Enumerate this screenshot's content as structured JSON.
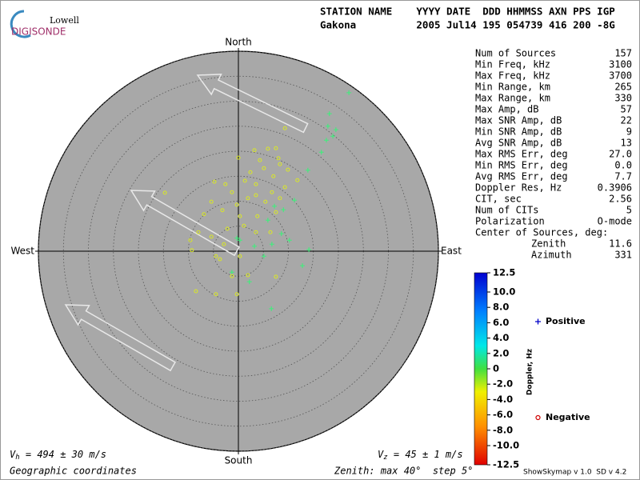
{
  "logo": {
    "top": "Lowell",
    "bottom": "DIGISONDE"
  },
  "header": {
    "line1": "STATION NAME    YYYY DATE  DDD HHMMSS AXN PPS IGP",
    "line2": "Gakona          2005 Jul14 195 054739 416 200 -8G"
  },
  "chart_data": {
    "type": "skymap",
    "directions": {
      "north": "North",
      "south": "South",
      "east": "East",
      "west": "West"
    },
    "rlim": [
      0,
      40
    ],
    "rticks": [
      5,
      10,
      15,
      20,
      25,
      30,
      35,
      40
    ],
    "series": [
      {
        "name": "Positive",
        "color": "#3cf07a",
        "legend_color": "#0000c8",
        "x": [
          22.1,
          18.2,
          19.5,
          17.6,
          13.9,
          11.2,
          9.0,
          7.2,
          14.1,
          12.8,
          6.6,
          10.2,
          8.6,
          5.1,
          3.2,
          0.3,
          -0.3,
          2.2,
          16.6,
          18.9,
          17.9,
          6.7,
          5.9,
          -1.3
        ],
        "y": [
          31.7,
          27.5,
          24.3,
          22.2,
          16.2,
          10.2,
          8.3,
          9.0,
          0.3,
          -2.9,
          -11.5,
          2.2,
          3.5,
          -1.0,
          1.0,
          2.2,
          2.6,
          -6.1,
          19.8,
          23.0,
          25.0,
          1.4,
          6.2,
          -4.2
        ]
      },
      {
        "name": "Negative",
        "color": "#d8e62a",
        "legend_color": "#d00000",
        "x": [
          -14.7,
          0,
          -8.5,
          -4.5,
          -0.3,
          -9.6,
          -9.3,
          -4.5,
          -3.7,
          -4.8,
          -2.6,
          1.3,
          3.5,
          5.1,
          7.5,
          8.0,
          5.9,
          3.2,
          9.3,
          11.8,
          9.3,
          6.7,
          3.5,
          1.9,
          -1.3,
          -5.4,
          -3.2,
          0.3,
          3.8,
          7.5,
          6.4,
          3.5,
          1.1,
          -2.2,
          -5.4,
          -2.9,
          0.3,
          7.5,
          1.9,
          -1.3,
          9.9,
          8.3,
          4.3,
          2.4,
          7.0,
          8.3,
          5.4,
          -0.3,
          -6.9,
          -8.0
        ],
        "y": [
          11.7,
          18.7,
          -8.0,
          -8.6,
          -8.6,
          2.2,
          0.2,
          -1.0,
          -1.6,
          13.9,
          13.4,
          14.1,
          13.4,
          16.6,
          20.6,
          18.6,
          20.5,
          20.2,
          24.6,
          14.2,
          12.8,
          11.8,
          11.2,
          10.6,
          11.8,
          9.9,
          8.2,
          7.0,
          7.0,
          7.8,
          3.8,
          3.8,
          5.1,
          4.5,
          2.9,
          1.4,
          -1.0,
          -5.1,
          -4.8,
          -5.0,
          16.3,
          17.4,
          18.2,
          15.8,
          15.0,
          10.6,
          9.9,
          9.3,
          7.4,
          3.8
        ]
      }
    ],
    "colorbar": {
      "label": "Doppler, Hz",
      "lim": [
        -12.5,
        12.5
      ],
      "ticks": [
        12.5,
        {
          "value": 10,
          "label": "10.0"
        },
        {
          "value": 8,
          "label": "8.0"
        },
        {
          "value": 6,
          "label": "6.0"
        },
        {
          "value": 4,
          "label": "4.0"
        },
        {
          "value": 2,
          "label": "2.0"
        },
        0,
        {
          "value": -2,
          "label": "-2.0"
        },
        {
          "value": -4,
          "label": "-4.0"
        },
        {
          "value": -6,
          "label": "-6.0"
        },
        {
          "value": -8,
          "label": "-8.0"
        },
        {
          "value": -10,
          "label": "-10.0"
        },
        -12.5
      ]
    }
  },
  "stats": [
    [
      "Num of Sources",
      "157"
    ],
    [
      "Min Freq, kHz",
      "3100"
    ],
    [
      "Max Freq, kHz",
      "3700"
    ],
    [
      "Min Range, km",
      "265"
    ],
    [
      "Max Range, km",
      "330"
    ],
    [
      "Max Amp, dB",
      "57"
    ],
    [
      "Max SNR Amp, dB",
      "22"
    ],
    [
      "Min SNR Amp, dB",
      "9"
    ],
    [
      "Avg SNR Amp, dB",
      "13"
    ],
    [
      "Max RMS Err, deg",
      "27.0"
    ],
    [
      "Min RMS Err, deg",
      "0.0"
    ],
    [
      "Avg RMS Err, deg",
      "7.7"
    ],
    [
      "Doppler Res, Hz",
      "0.3906"
    ],
    [
      "CIT, sec",
      "2.56"
    ],
    [
      "Num of CITs",
      "5"
    ],
    [
      "Polarization",
      "O-mode"
    ]
  ],
  "center": {
    "title": "Center of Sources, deg:",
    "rows": [
      [
        "Zenith",
        "11.6"
      ],
      [
        "Azimuth",
        "331"
      ]
    ]
  },
  "footer": {
    "vh": {
      "symbol": "V",
      "sub": "h",
      "text": " = 494 ± 30 m/s"
    },
    "vz": {
      "symbol": "V",
      "sub": "z",
      "text": " = 45 ± 1 m/s"
    },
    "coords": "Geographic coordinates",
    "zenith": "Zenith: max 40°  step 5°",
    "version": "ShowSkymap v 1.0  SD v 4.2"
  }
}
